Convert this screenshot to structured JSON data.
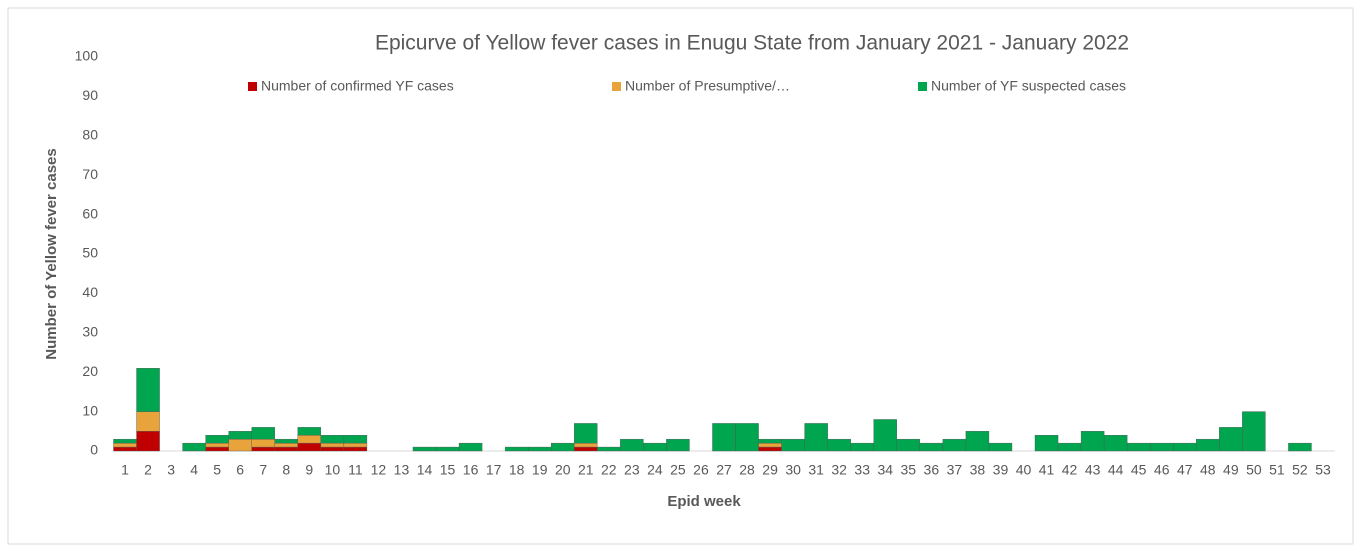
{
  "chart_data": {
    "type": "stacked_bar",
    "title": "Epicurve of Yellow fever cases in Enugu State  from January 2021 - January 2022",
    "x_label": "Epid week",
    "y_label": "Number of Yellow fever cases",
    "categories": [
      "1",
      "2",
      "3",
      "4",
      "5",
      "6",
      "7",
      "8",
      "9",
      "10",
      "11",
      "12",
      "13",
      "14",
      "15",
      "16",
      "17",
      "18",
      "19",
      "20",
      "21",
      "22",
      "23",
      "24",
      "25",
      "26",
      "27",
      "28",
      "29",
      "30",
      "31",
      "32",
      "33",
      "34",
      "35",
      "36",
      "37",
      "38",
      "39",
      "40",
      "41",
      "42",
      "43",
      "44",
      "45",
      "46",
      "47",
      "48",
      "49",
      "50",
      "51",
      "52",
      "53"
    ],
    "series": [
      {
        "name": "Number of confirmed YF cases",
        "color": "#c00000",
        "values": [
          1,
          5,
          0,
          0,
          1,
          0,
          1,
          1,
          2,
          1,
          1,
          0,
          0,
          0,
          0,
          0,
          0,
          0,
          0,
          0,
          1,
          0,
          0,
          0,
          0,
          0,
          0,
          0,
          1,
          0,
          0,
          0,
          0,
          0,
          0,
          0,
          0,
          0,
          0,
          0,
          0,
          0,
          0,
          0,
          0,
          0,
          0,
          0,
          0,
          0,
          0,
          0,
          0
        ]
      },
      {
        "name": "Number of Presumptive/…",
        "color": "#e8a33a",
        "values": [
          1,
          5,
          0,
          0,
          1,
          3,
          2,
          1,
          2,
          1,
          1,
          0,
          0,
          0,
          0,
          0,
          0,
          0,
          0,
          0,
          1,
          0,
          0,
          0,
          0,
          0,
          0,
          0,
          1,
          0,
          0,
          0,
          0,
          0,
          0,
          0,
          0,
          0,
          0,
          0,
          0,
          0,
          0,
          0,
          0,
          0,
          0,
          0,
          0,
          0,
          0,
          0,
          0
        ]
      },
      {
        "name": "Number of YF suspected cases",
        "color": "#00a550",
        "values": [
          1,
          11,
          0,
          2,
          2,
          2,
          3,
          1,
          2,
          2,
          2,
          0,
          0,
          1,
          1,
          2,
          0,
          1,
          1,
          2,
          5,
          1,
          3,
          2,
          3,
          0,
          7,
          7,
          1,
          3,
          7,
          3,
          2,
          8,
          3,
          2,
          3,
          5,
          2,
          0,
          4,
          2,
          5,
          4,
          2,
          2,
          2,
          3,
          6,
          10,
          0,
          2,
          0
        ]
      }
    ],
    "ylim": [
      0,
      100
    ],
    "yticks": [
      0,
      10,
      20,
      30,
      40,
      50,
      60,
      70,
      80,
      90,
      100
    ]
  }
}
